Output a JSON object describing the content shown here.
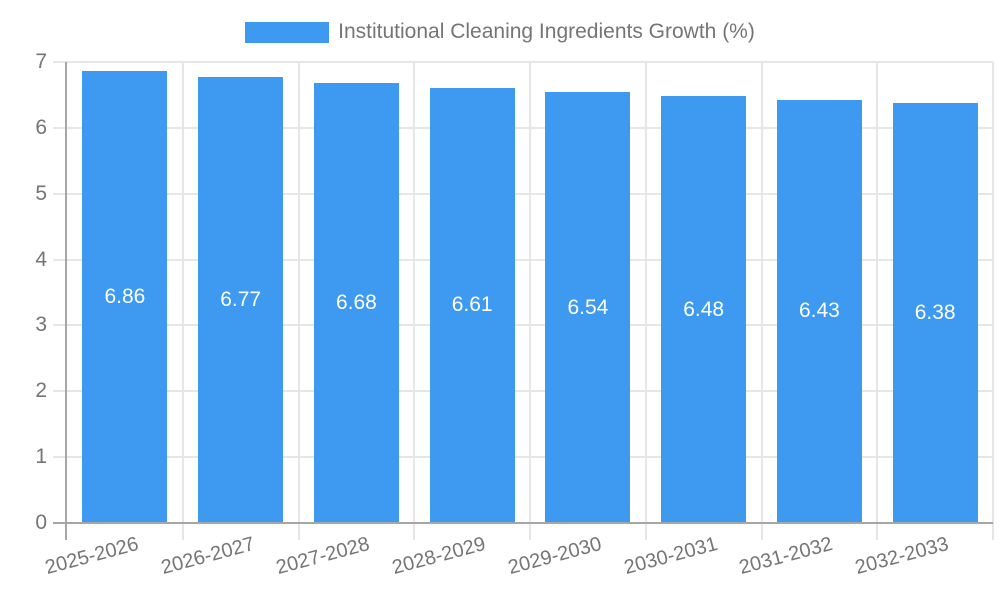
{
  "chart_data": {
    "type": "bar",
    "title": "Institutional Cleaning Ingredients Growth (%)",
    "legend_position": "top",
    "categories": [
      "2025-2026",
      "2026-2027",
      "2027-2028",
      "2028-2029",
      "2029-2030",
      "2030-2031",
      "2031-2032",
      "2032-2033"
    ],
    "values": [
      6.86,
      6.77,
      6.68,
      6.61,
      6.54,
      6.48,
      6.43,
      6.38
    ],
    "value_label_decimals": 2,
    "xlabel": "",
    "ylabel": "",
    "ylim": [
      0,
      7
    ],
    "yticks": [
      0,
      1,
      2,
      3,
      4,
      5,
      6,
      7
    ],
    "grid": true,
    "colors": {
      "bar": "#3D9AF0",
      "grid": "#E6E6E6",
      "axis": "#A6A6A6",
      "text": "#757575",
      "value_label": "#FFFFFF",
      "background": "#FFFFFF"
    }
  }
}
